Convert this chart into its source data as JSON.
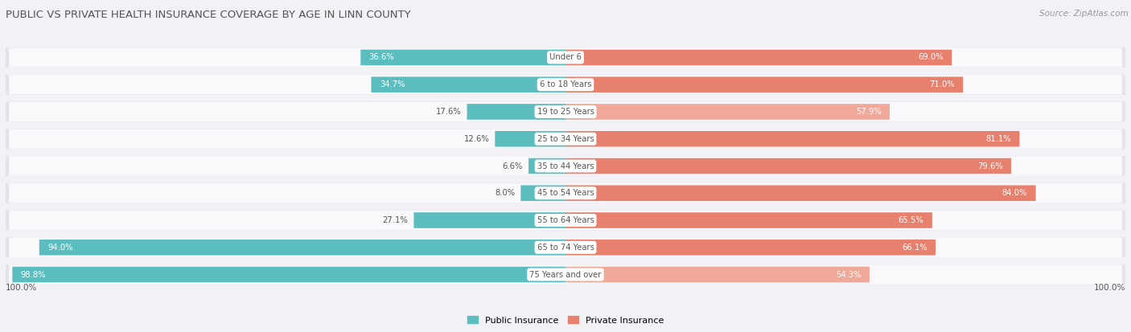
{
  "title": "PUBLIC VS PRIVATE HEALTH INSURANCE COVERAGE BY AGE IN LINN COUNTY",
  "source": "Source: ZipAtlas.com",
  "categories": [
    "Under 6",
    "6 to 18 Years",
    "19 to 25 Years",
    "25 to 34 Years",
    "35 to 44 Years",
    "45 to 54 Years",
    "55 to 64 Years",
    "65 to 74 Years",
    "75 Years and over"
  ],
  "public_values": [
    36.6,
    34.7,
    17.6,
    12.6,
    6.6,
    8.0,
    27.1,
    94.0,
    98.8
  ],
  "private_values": [
    69.0,
    71.0,
    57.9,
    81.1,
    79.6,
    84.0,
    65.5,
    66.1,
    54.3
  ],
  "public_color": "#5bbdbe",
  "private_color": "#e8806e",
  "private_color_light": "#f0a898",
  "background_color": "#f2f1f6",
  "row_bg_color": "#e4e3ea",
  "row_white_color": "#f9f9fb",
  "title_color": "#555555",
  "source_color": "#999999",
  "label_dark": "#555555",
  "label_white": "#ffffff",
  "max_value": 100.0
}
